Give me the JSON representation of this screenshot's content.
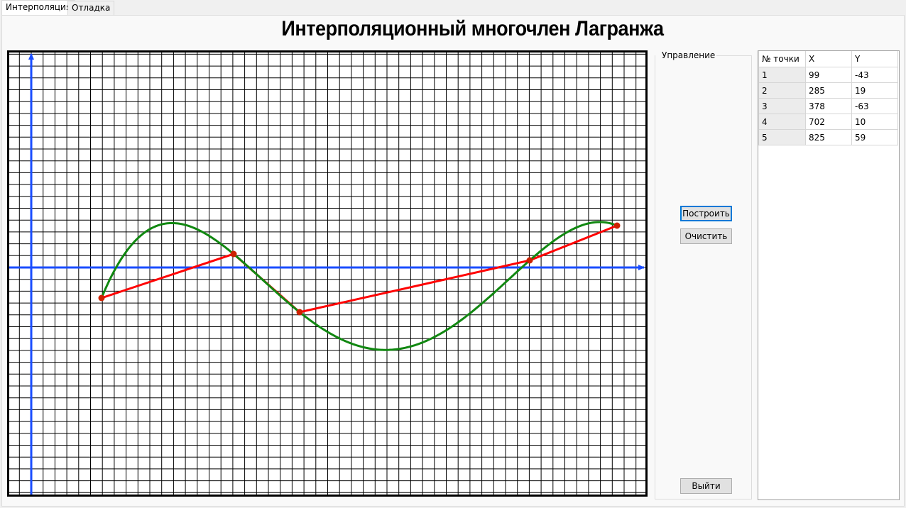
{
  "tabs": [
    {
      "label": "Интерполяция",
      "active": true
    },
    {
      "label": "Отладка",
      "active": false
    }
  ],
  "title": "Интерполяционный многочлен Лагранжа",
  "control_group": {
    "legend": "Управление"
  },
  "buttons": {
    "build": "Построить",
    "clear": "Очистить",
    "exit": "Выйти"
  },
  "table": {
    "headers": [
      "№ точки",
      "X",
      "Y"
    ],
    "rows": [
      [
        "1",
        "99",
        "-43"
      ],
      [
        "2",
        "285",
        "19"
      ],
      [
        "3",
        "378",
        "-63"
      ],
      [
        "4",
        "702",
        "10"
      ],
      [
        "5",
        "825",
        "59"
      ]
    ]
  },
  "colors": {
    "axis": "#1a4dff",
    "polyline": "#ff0000",
    "point": "#cc2200",
    "curve": "#118811",
    "grid": "#000000"
  },
  "chart_data": {
    "type": "line",
    "points": [
      {
        "x": 99,
        "y": -43
      },
      {
        "x": 285,
        "y": 19
      },
      {
        "x": 378,
        "y": -63
      },
      {
        "x": 702,
        "y": 10
      },
      {
        "x": 825,
        "y": 59
      }
    ],
    "series": [
      {
        "kind": "polyline"
      },
      {
        "kind": "lagrange-curve"
      }
    ],
    "grid": true
  }
}
